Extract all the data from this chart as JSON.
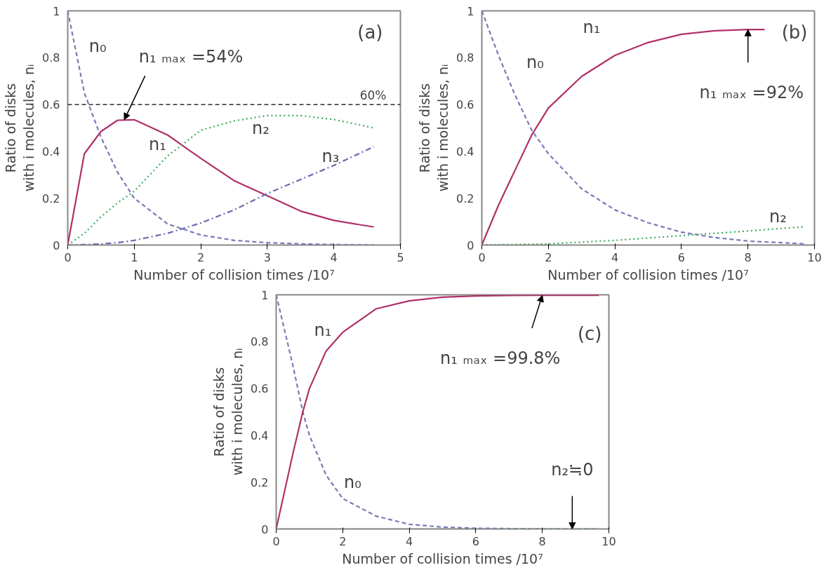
{
  "chart_data": [
    {
      "type": "line",
      "xlabel": "Number of collision times /10⁷",
      "ylabel": "Ratio of disks\nwith i molecules, nᵢ",
      "xlim": [
        0,
        5
      ],
      "ylim": [
        0,
        1
      ],
      "xticks": [
        0,
        1,
        2,
        3,
        4,
        5
      ],
      "yticks": [
        0,
        0.2,
        0.4,
        0.6,
        0.8,
        1
      ],
      "grid": false,
      "legend": false,
      "x": [
        0,
        0.25,
        0.5,
        0.75,
        1,
        1.5,
        2,
        2.5,
        3,
        3.5,
        4,
        4.6
      ],
      "series": [
        {
          "name": "n₀",
          "color": "#7a7ab8",
          "line_style": "dashed",
          "values": [
            1,
            0.65,
            0.46,
            0.31,
            0.2,
            0.09,
            0.043,
            0.02,
            0.01,
            0.005,
            0.002,
            0
          ]
        },
        {
          "name": "n₁",
          "color": "#b0306a",
          "line_style": "solid",
          "values": [
            0,
            0.39,
            0.485,
            0.533,
            0.535,
            0.47,
            0.37,
            0.275,
            0.21,
            0.145,
            0.105,
            0.077
          ]
        },
        {
          "name": "n₂",
          "color": "#3aaa5a",
          "line_style": "dotted",
          "values": [
            0,
            0.05,
            0.12,
            0.18,
            0.23,
            0.38,
            0.49,
            0.53,
            0.553,
            0.553,
            0.536,
            0.5
          ]
        },
        {
          "name": "n₃",
          "color": "#6a6ab0",
          "line_style": "dashdot",
          "values": [
            0,
            0.002,
            0.005,
            0.01,
            0.02,
            0.05,
            0.094,
            0.15,
            0.22,
            0.28,
            0.34,
            0.42
          ]
        }
      ],
      "ref_lines": [
        {
          "axis": "y",
          "value": 0.6,
          "label": "60%",
          "color": "#000000",
          "line_style": "dashed"
        }
      ],
      "annotations": [
        "(a)",
        {
          "text": "n₁ ₘₐₓ =54%",
          "x": 0.85,
          "y": 0.535
        }
      ]
    },
    {
      "type": "line",
      "xlabel": "Number of collision times /10⁷",
      "ylabel": "Ratio of disks\nwith i molecules, nᵢ",
      "xlim": [
        0,
        10
      ],
      "ylim": [
        0,
        1
      ],
      "xticks": [
        0,
        2,
        4,
        6,
        8,
        10
      ],
      "yticks": [
        0,
        0.2,
        0.4,
        0.6,
        0.8,
        1
      ],
      "grid": false,
      "legend": false,
      "series": [
        {
          "name": "n₀",
          "color": "#7a7ab8",
          "line_style": "dashed",
          "x": [
            0,
            0.5,
            1,
            1.5,
            2,
            3,
            4,
            5,
            6,
            7,
            8,
            9,
            9.7
          ],
          "values": [
            1,
            0.81,
            0.64,
            0.49,
            0.39,
            0.24,
            0.15,
            0.095,
            0.055,
            0.032,
            0.017,
            0.01,
            0.005
          ]
        },
        {
          "name": "n₁",
          "color": "#b0306a",
          "line_style": "solid",
          "x": [
            0,
            0.5,
            1,
            1.5,
            2,
            3,
            4,
            5,
            6,
            7,
            8,
            8.5
          ],
          "values": [
            0,
            0.17,
            0.32,
            0.47,
            0.585,
            0.72,
            0.81,
            0.865,
            0.9,
            0.915,
            0.92,
            0.92
          ]
        },
        {
          "name": "n₂",
          "color": "#3aaa5a",
          "line_style": "dotted",
          "x": [
            0,
            2,
            4,
            6,
            8,
            9.7
          ],
          "values": [
            0,
            0.005,
            0.02,
            0.04,
            0.06,
            0.078
          ]
        }
      ],
      "annotations": [
        "(b)",
        {
          "text": "n₁ ₘₐₓ =92%",
          "x": 8,
          "y": 0.92
        }
      ]
    },
    {
      "type": "line",
      "xlabel": "Number of collision times /10⁷",
      "ylabel": "Ratio of disks\nwith i molecules, nᵢ",
      "xlim": [
        0,
        10
      ],
      "ylim": [
        0,
        1
      ],
      "xticks": [
        0,
        2,
        4,
        6,
        8,
        10
      ],
      "yticks": [
        0,
        0.2,
        0.4,
        0.6,
        0.8,
        1
      ],
      "grid": false,
      "legend": false,
      "series": [
        {
          "name": "n₀",
          "color": "#7a7ab8",
          "line_style": "dashed",
          "x": [
            0,
            0.5,
            0.8,
            1,
            1.5,
            2,
            3,
            4,
            5,
            6,
            8,
            9.7
          ],
          "values": [
            1,
            0.7,
            0.5,
            0.4,
            0.23,
            0.13,
            0.055,
            0.02,
            0.008,
            0.003,
            0,
            0
          ]
        },
        {
          "name": "n₁",
          "color": "#b0306a",
          "line_style": "solid",
          "x": [
            0,
            0.5,
            0.8,
            1,
            1.5,
            2,
            3,
            4,
            5,
            6,
            7,
            8,
            9.7
          ],
          "values": [
            0,
            0.32,
            0.5,
            0.6,
            0.76,
            0.84,
            0.94,
            0.974,
            0.99,
            0.995,
            0.997,
            0.998,
            0.998
          ]
        },
        {
          "color": "#3aaa5a",
          "line_style": "dotted",
          "x": [
            0,
            2,
            4,
            6,
            8,
            8.9,
            9.7
          ],
          "values": [
            0,
            0,
            0,
            0,
            0,
            0,
            0
          ]
        }
      ],
      "annotations": [
        "(c)",
        {
          "text": "n₁ ₘₐₓ =99.8%",
          "x": 8,
          "y": 0.998
        },
        {
          "text": "n₂≒0",
          "x": 8.9,
          "y": 0
        }
      ]
    }
  ]
}
